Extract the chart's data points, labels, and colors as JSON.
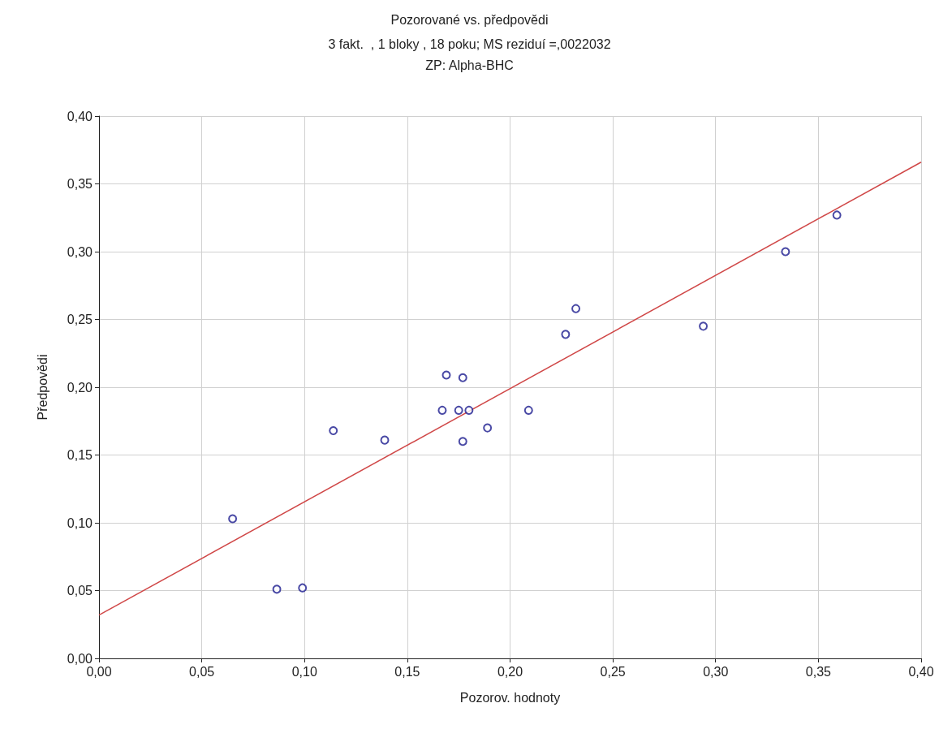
{
  "chart_data": {
    "type": "scatter",
    "title": "Pozorované vs. předpovědi",
    "subtitle": "3 fakt.  , 1 bloky , 18 poku; MS reziduí =,0022032\nZP: Alpha-BHC",
    "xlabel": "Pozorov. hodnoty",
    "ylabel": "Předpovědi",
    "series": [
      {
        "color": "#1c1c8e",
        "x": [
          0.065,
          0.0865,
          0.099,
          0.114,
          0.139,
          0.167,
          0.169,
          0.175,
          0.177,
          0.18,
          0.177,
          0.189,
          0.209,
          0.227,
          0.232,
          0.294,
          0.334,
          0.359
        ],
        "values": [
          0.103,
          0.051,
          0.052,
          0.168,
          0.161,
          0.183,
          0.209,
          0.183,
          0.207,
          0.183,
          0.16,
          0.17,
          0.183,
          0.239,
          0.258,
          0.245,
          0.3,
          0.327
        ]
      },
      {
        "type": "line",
        "color": "#d04848",
        "marker": "none",
        "line_style": "solid",
        "x": [
          0,
          0.4
        ],
        "values": [
          0.032,
          0.366
        ]
      }
    ],
    "xlim": [
      0,
      0.4
    ],
    "ylim": [
      0,
      0.4
    ],
    "xticks": [
      {
        "value": 0,
        "label": "0,00"
      },
      {
        "value": 0.05,
        "label": "0,05"
      },
      {
        "value": 0.1,
        "label": "0,10"
      },
      {
        "value": 0.15,
        "label": "0,15"
      },
      {
        "value": 0.2,
        "label": "0,20"
      },
      {
        "value": 0.25,
        "label": "0,25"
      },
      {
        "value": 0.3,
        "label": "0,30"
      },
      {
        "value": 0.35,
        "label": "0,35"
      },
      {
        "value": 0.4,
        "label": "0,40"
      }
    ],
    "yticks": [
      {
        "value": 0,
        "label": "0,00"
      },
      {
        "value": 0.05,
        "label": "0,05"
      },
      {
        "value": 0.1,
        "label": "0,10"
      },
      {
        "value": 0.15,
        "label": "0,15"
      },
      {
        "value": 0.2,
        "label": "0,20"
      },
      {
        "value": 0.25,
        "label": "0,25"
      },
      {
        "value": 0.3,
        "label": "0,30"
      },
      {
        "value": 0.35,
        "label": "0,35"
      },
      {
        "value": 0.4,
        "label": "0,40"
      }
    ],
    "grid": true,
    "marker": "circle"
  }
}
